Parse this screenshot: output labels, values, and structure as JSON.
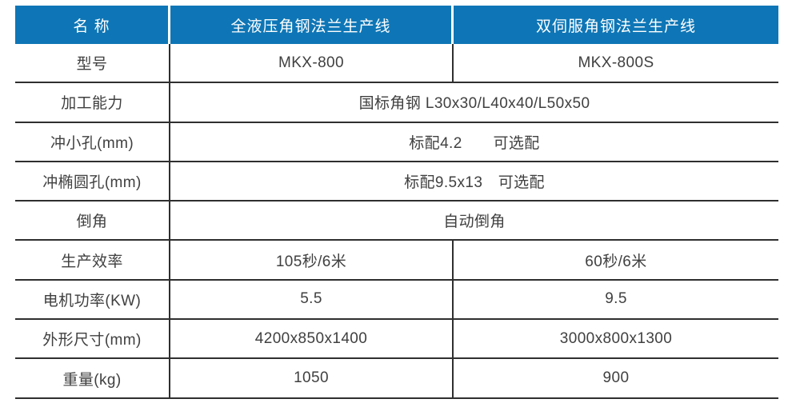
{
  "colors": {
    "header_bg": "#0E76B6",
    "line": "#2F2F2F",
    "header_text": "#FFFFFF",
    "body_text": "#404040"
  },
  "table": {
    "header": {
      "name_label": "名 称",
      "col1": "全液压角钢法兰生产线",
      "col2": "双伺服角钢法兰生产线"
    },
    "rows": [
      {
        "label": "型号",
        "type": "two",
        "v1": "MKX-800",
        "v2": "MKX-800S"
      },
      {
        "label": "加工能力",
        "type": "span",
        "value": "国标角钢 L30x30/L40x40/L50x50"
      },
      {
        "label": "冲小孔(mm)",
        "type": "span",
        "value": "标配4.2　　可选配"
      },
      {
        "label": "冲椭圆孔(mm)",
        "type": "span",
        "value": "标配9.5x13　可选配"
      },
      {
        "label": "倒角",
        "type": "span",
        "value": "自动倒角"
      },
      {
        "label": "生产效率",
        "type": "two",
        "v1": "105秒/6米",
        "v2": "60秒/6米"
      },
      {
        "label": "电机功率(KW)",
        "type": "two",
        "v1": "5.5",
        "v2": "9.5"
      },
      {
        "label": "外形尺寸(mm)",
        "type": "two",
        "v1": "4200x850x1400",
        "v2": "3000x800x1300"
      },
      {
        "label": "重量(kg)",
        "type": "two",
        "v1": "1050",
        "v2": "900"
      }
    ]
  }
}
